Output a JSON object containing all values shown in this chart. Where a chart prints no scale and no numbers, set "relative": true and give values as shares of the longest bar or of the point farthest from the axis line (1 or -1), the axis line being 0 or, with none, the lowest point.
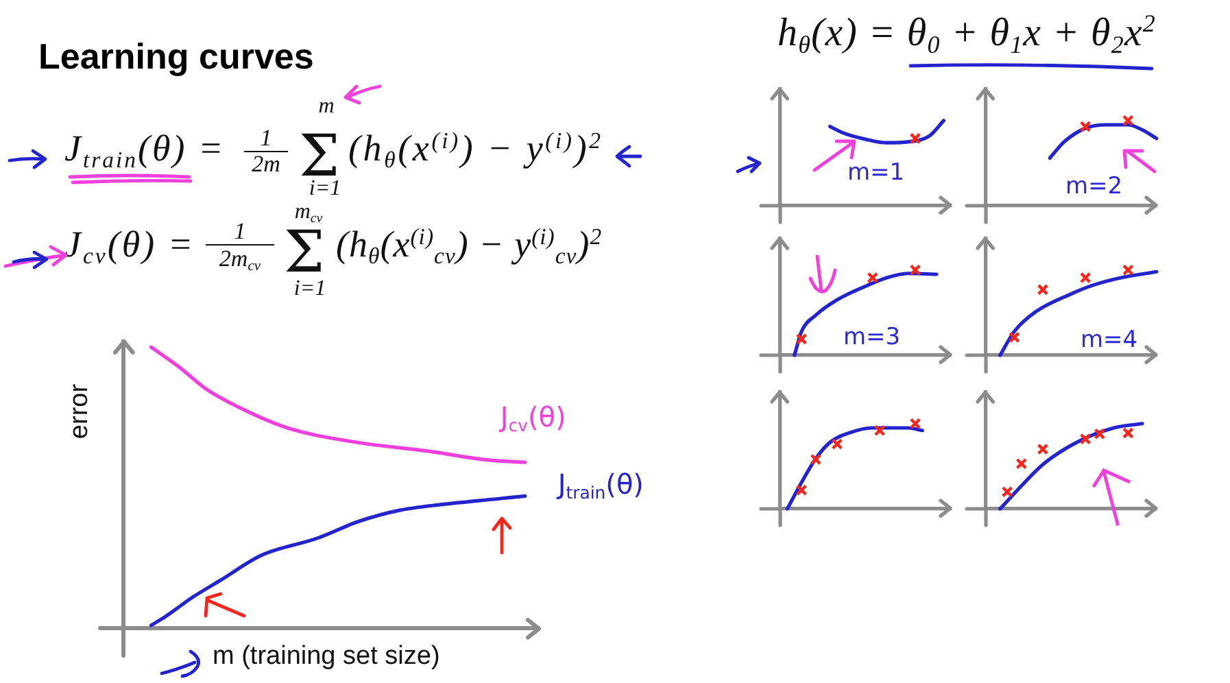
{
  "chart_data": [
    {
      "type": "other",
      "title": "Learning curves",
      "annotations": [
        "J$_{train}$(θ) =",
        "1",
        "2m",
        "m",
        "Σ",
        "i=1",
        "(h$_{θ}$(x$^{(i)}$) − y$^{(i)}$)$^{2}$",
        "J$_{cv}$(θ) =",
        "1",
        "2m$_{cv}$",
        "m$_{cv}$",
        "Σ",
        "i=1",
        "(h$_{θ}$(x$^{(i)}$$_{cv}$) − y$^{(i)}$$_{cv}$)$^{2}$",
        "h$_{θ}$(x) = θ$_{0}$ + θ$_{1}$x + θ$_{2}$x$^{2}$"
      ]
    },
    {
      "type": "line",
      "relative": true,
      "tick_labels": false,
      "xlabel": "m (training set size)",
      "ylabel": "error",
      "categories": [
        null,
        null,
        null,
        null,
        null,
        null,
        null,
        null,
        null,
        null,
        null,
        null,
        null,
        null,
        null,
        null,
        null,
        null,
        null,
        null,
        null,
        null,
        null,
        null,
        null,
        null,
        null,
        null,
        null,
        null,
        null
      ],
      "series": [
        {
          "name": "J$_{cv}$(θ)",
          "color": "#ef3fdc",
          "values": [
            null,
            null,
            1.0,
            null,
            0.93,
            null,
            0.85,
            null,
            null,
            0.77,
            null,
            null,
            0.71,
            null,
            null,
            null,
            null,
            0.66,
            null,
            null,
            null,
            null,
            0.63,
            null,
            null,
            null,
            0.6,
            null,
            null,
            0.59,
            null
          ]
        },
        {
          "name": "J$_{train}$(θ)",
          "color": "#2424cf",
          "values": [
            null,
            null,
            0.01,
            0.04,
            null,
            0.11,
            null,
            0.17,
            null,
            null,
            0.26,
            null,
            null,
            null,
            0.32,
            null,
            null,
            0.38,
            null,
            null,
            0.42,
            null,
            null,
            0.44,
            null,
            null,
            null,
            0.46,
            null,
            0.47,
            null
          ]
        }
      ]
    },
    {
      "type": "line",
      "relative": true,
      "tick_labels": false,
      "annotations": [
        "m=1"
      ],
      "categories": [
        null,
        null,
        null,
        null,
        null,
        null,
        null,
        null,
        null,
        null,
        null,
        null,
        null,
        null,
        null,
        null,
        null,
        null,
        null,
        null,
        null,
        null,
        null,
        null,
        null
      ],
      "series": [
        {
          "marker": "cross",
          "line_style": "none",
          "color": "#f5261c",
          "values": [
            null,
            null,
            null,
            null,
            null,
            null,
            null,
            null,
            null,
            null,
            null,
            null,
            null,
            null,
            null,
            null,
            null,
            null,
            null,
            0.79,
            null,
            null,
            null,
            null,
            null
          ]
        },
        {
          "color": "#2424cf",
          "values": [
            null,
            null,
            null,
            null,
            null,
            null,
            null,
            0.93,
            null,
            0.85,
            null,
            null,
            0.78,
            null,
            null,
            0.74,
            null,
            null,
            0.75,
            null,
            null,
            0.82,
            null,
            1.0,
            null
          ]
        }
      ]
    },
    {
      "type": "line",
      "relative": true,
      "tick_labels": false,
      "annotations": [
        "m=2"
      ],
      "categories": [
        null,
        null,
        null,
        null,
        null,
        null,
        null,
        null,
        null,
        null,
        null,
        null,
        null,
        null,
        null,
        null,
        null,
        null,
        null,
        null,
        null,
        null,
        null,
        null,
        null
      ],
      "series": [
        {
          "marker": "cross",
          "line_style": "none",
          "color": "#f5261c",
          "values": [
            null,
            null,
            null,
            null,
            null,
            null,
            null,
            null,
            null,
            null,
            null,
            null,
            null,
            null,
            0.93,
            null,
            null,
            null,
            null,
            null,
            1.0,
            null,
            null,
            null,
            null
          ]
        },
        {
          "color": "#2424cf",
          "values": [
            null,
            null,
            null,
            null,
            null,
            null,
            null,
            null,
            null,
            0.56,
            null,
            0.75,
            null,
            null,
            0.91,
            null,
            null,
            0.95,
            null,
            null,
            0.95,
            null,
            0.89,
            null,
            0.79
          ]
        }
      ]
    },
    {
      "type": "line",
      "relative": true,
      "tick_labels": false,
      "annotations": [
        "m=3"
      ],
      "categories": [
        null,
        null,
        null,
        null,
        null,
        null,
        null,
        null,
        null,
        null,
        null,
        null,
        null,
        null,
        null,
        null,
        null,
        null,
        null,
        null,
        null,
        null,
        null,
        null,
        null
      ],
      "series": [
        {
          "marker": "cross",
          "line_style": "none",
          "color": "#f5261c",
          "values": [
            null,
            null,
            null,
            0.19,
            null,
            null,
            null,
            null,
            null,
            null,
            null,
            null,
            null,
            0.91,
            null,
            null,
            null,
            null,
            null,
            1.0,
            null,
            null,
            null,
            null,
            null
          ]
        },
        {
          "color": "#2424cf",
          "values": [
            null,
            null,
            0,
            0.28,
            null,
            0.47,
            null,
            null,
            0.65,
            null,
            null,
            null,
            0.81,
            null,
            null,
            0.91,
            null,
            null,
            0.96,
            null,
            null,
            null,
            0.95,
            null,
            null
          ]
        }
      ]
    },
    {
      "type": "line",
      "relative": true,
      "tick_labels": false,
      "annotations": [
        "m=4"
      ],
      "categories": [
        null,
        null,
        null,
        null,
        null,
        null,
        null,
        null,
        null,
        null,
        null,
        null,
        null,
        null,
        null,
        null,
        null,
        null,
        null,
        null,
        null,
        null,
        null,
        null,
        null
      ],
      "series": [
        {
          "marker": "cross",
          "line_style": "none",
          "color": "#f5261c",
          "values": [
            null,
            null,
            null,
            null,
            0.21,
            null,
            null,
            null,
            0.77,
            null,
            null,
            null,
            null,
            null,
            0.91,
            null,
            null,
            null,
            null,
            null,
            1.0,
            null,
            null,
            null,
            null
          ]
        },
        {
          "color": "#2424cf",
          "values": [
            null,
            null,
            0,
            null,
            0.28,
            null,
            null,
            0.51,
            null,
            null,
            null,
            null,
            0.72,
            null,
            null,
            0.82,
            null,
            null,
            null,
            0.91,
            null,
            null,
            null,
            null,
            0.98
          ]
        }
      ]
    },
    {
      "type": "line",
      "relative": true,
      "tick_labels": false,
      "categories": [
        null,
        null,
        null,
        null,
        null,
        null,
        null,
        null,
        null,
        null,
        null,
        null,
        null,
        null,
        null,
        null,
        null,
        null,
        null,
        null,
        null,
        null,
        null,
        null,
        null
      ],
      "series": [
        {
          "marker": "cross",
          "line_style": "none",
          "color": "#f5261c",
          "values": [
            null,
            null,
            null,
            0.22,
            null,
            0.58,
            null,
            null,
            0.76,
            null,
            null,
            null,
            null,
            null,
            0.92,
            null,
            null,
            null,
            null,
            1.0,
            null,
            null,
            null,
            null,
            null
          ]
        },
        {
          "color": "#2424cf",
          "values": [
            null,
            0,
            null,
            0.31,
            null,
            0.59,
            null,
            0.78,
            null,
            null,
            0.9,
            null,
            null,
            0.95,
            null,
            null,
            null,
            null,
            0.95,
            null,
            0.92,
            null,
            null,
            null,
            null
          ]
        }
      ]
    },
    {
      "type": "line",
      "relative": true,
      "tick_labels": false,
      "categories": [
        null,
        null,
        null,
        null,
        null,
        null,
        null,
        null,
        null,
        null,
        null,
        null,
        null,
        null,
        null,
        null,
        null,
        null,
        null,
        null,
        null,
        null,
        null,
        null,
        null
      ],
      "series": [
        {
          "marker": "cross",
          "line_style": "none",
          "color": "#f5261c",
          "values": [
            null,
            null,
            null,
            0.2,
            null,
            0.53,
            null,
            null,
            0.7,
            null,
            null,
            null,
            null,
            null,
            0.82,
            null,
            0.88,
            null,
            null,
            null,
            0.89,
            null,
            null,
            null,
            null
          ]
        },
        {
          "color": "#2424cf",
          "values": [
            null,
            null,
            0,
            null,
            null,
            0.27,
            null,
            null,
            0.52,
            null,
            null,
            null,
            null,
            0.79,
            null,
            null,
            null,
            null,
            0.95,
            null,
            null,
            null,
            1.0,
            null,
            null
          ]
        }
      ]
    }
  ]
}
